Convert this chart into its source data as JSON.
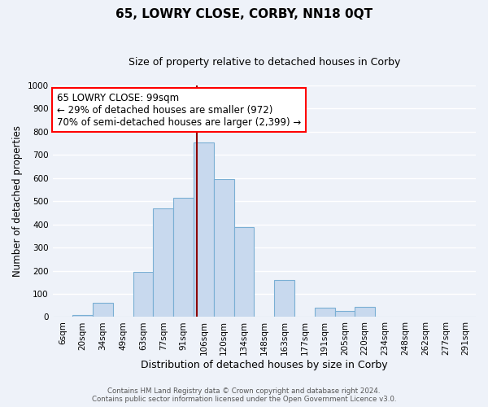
{
  "title": "65, LOWRY CLOSE, CORBY, NN18 0QT",
  "subtitle": "Size of property relative to detached houses in Corby",
  "xlabel": "Distribution of detached houses by size in Corby",
  "ylabel": "Number of detached properties",
  "bar_labels": [
    "6sqm",
    "20sqm",
    "34sqm",
    "49sqm",
    "63sqm",
    "77sqm",
    "91sqm",
    "106sqm",
    "120sqm",
    "134sqm",
    "148sqm",
    "163sqm",
    "177sqm",
    "191sqm",
    "205sqm",
    "220sqm",
    "234sqm",
    "248sqm",
    "262sqm",
    "277sqm",
    "291sqm"
  ],
  "bar_values": [
    0,
    10,
    60,
    0,
    195,
    470,
    515,
    755,
    595,
    390,
    0,
    160,
    0,
    42,
    25,
    45,
    0,
    0,
    0,
    0,
    0
  ],
  "bar_color": "#c8d9ee",
  "bar_edge_color": "#7aafd4",
  "ylim": [
    0,
    1000
  ],
  "yticks": [
    0,
    100,
    200,
    300,
    400,
    500,
    600,
    700,
    800,
    900,
    1000
  ],
  "red_line_x": 6.65,
  "red_line_color": "#8b0000",
  "annotation_line1": "65 LOWRY CLOSE: 99sqm",
  "annotation_line2": "← 29% of detached houses are smaller (972)",
  "annotation_line3": "70% of semi-detached houses are larger (2,399) →",
  "footer1": "Contains HM Land Registry data © Crown copyright and database right 2024.",
  "footer2": "Contains public sector information licensed under the Open Government Licence v3.0.",
  "bg_color": "#eef2f9",
  "grid_color": "#ffffff",
  "title_fontsize": 11,
  "subtitle_fontsize": 9,
  "ylabel_fontsize": 8.5,
  "xlabel_fontsize": 9,
  "tick_fontsize": 7.5,
  "annotation_fontsize": 8.5,
  "footer_fontsize": 6.2
}
